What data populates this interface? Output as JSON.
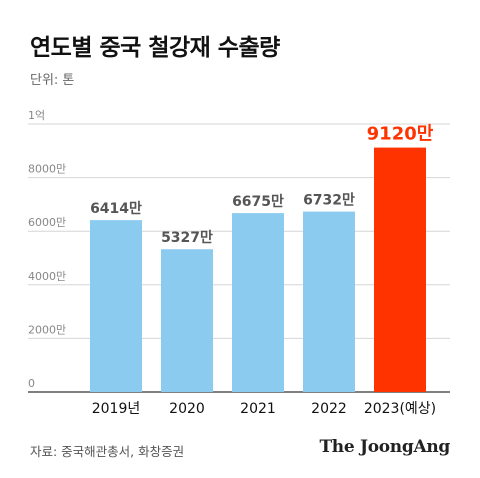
{
  "title": "연도별 중국 철강재 수출량",
  "unit_label": "단위: 톤",
  "source": "자료: 중국해관총서, 화창증권",
  "brand": "The JoongAng",
  "colors": {
    "bar": "#8ccbf0",
    "highlight": "#ff3300",
    "label": "#555555",
    "highlight_label": "#ff3300"
  },
  "chart_data": {
    "type": "bar",
    "title": "연도별 중국 철강재 수출량",
    "ylabel": "단위: 톤",
    "xlabel": "",
    "categories": [
      "2019년",
      "2020",
      "2021",
      "2022",
      "2023(예상)"
    ],
    "values": [
      6414,
      5327,
      6675,
      6732,
      9120
    ],
    "value_labels": [
      "6414만",
      "5327만",
      "6675만",
      "6732만",
      "9120만"
    ],
    "yticks": [
      0,
      2000,
      4000,
      6000,
      8000,
      10000
    ],
    "ytick_labels": [
      "0",
      "2000만",
      "4000만",
      "6000만",
      "8000만",
      "1억"
    ],
    "ylim": [
      0,
      10000
    ],
    "highlight_index": 4,
    "grid": true,
    "legend": "none"
  }
}
